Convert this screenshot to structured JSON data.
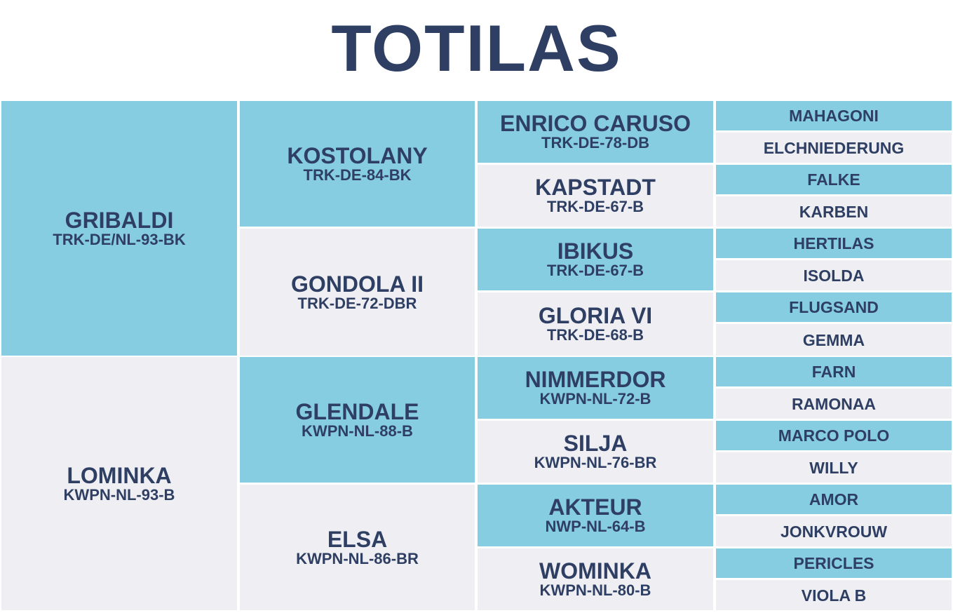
{
  "title": "TOTILAS",
  "colors": {
    "navy": "#2e3f63",
    "blue": "#87cde2",
    "grey": "#efeff3"
  },
  "sire": {
    "name": "GRIBALDI",
    "reg": "TRK-DE/NL-93-BK"
  },
  "dam": {
    "name": "LOMINKA",
    "reg": "KWPN-NL-93-B"
  },
  "sire_sire": {
    "name": "KOSTOLANY",
    "reg": "TRK-DE-84-BK"
  },
  "sire_dam": {
    "name": "GONDOLA II",
    "reg": "TRK-DE-72-DBR"
  },
  "dam_sire": {
    "name": "GLENDALE",
    "reg": "KWPN-NL-88-B"
  },
  "dam_dam": {
    "name": "ELSA",
    "reg": "KWPN-NL-86-BR"
  },
  "gen3": [
    {
      "name": "ENRICO CARUSO",
      "reg": "TRK-DE-78-DB"
    },
    {
      "name": "KAPSTADT",
      "reg": "TRK-DE-67-B"
    },
    {
      "name": "IBIKUS",
      "reg": "TRK-DE-67-B"
    },
    {
      "name": "GLORIA VI",
      "reg": "TRK-DE-68-B"
    },
    {
      "name": "NIMMERDOR",
      "reg": "KWPN-NL-72-B"
    },
    {
      "name": "SILJA",
      "reg": "KWPN-NL-76-BR"
    },
    {
      "name": "AKTEUR",
      "reg": "NWP-NL-64-B"
    },
    {
      "name": "WOMINKA",
      "reg": "KWPN-NL-80-B"
    }
  ],
  "gen4": [
    "MAHAGONI",
    "ELCHNIEDERUNG",
    "FALKE",
    "KARBEN",
    "HERTILAS",
    "ISOLDA",
    "FLUGSAND",
    "GEMMA",
    "FARN",
    "RAMONAA",
    "MARCO POLO",
    "WILLY",
    "AMOR",
    "JONKVROUW",
    "PERICLES",
    "VIOLA B"
  ]
}
